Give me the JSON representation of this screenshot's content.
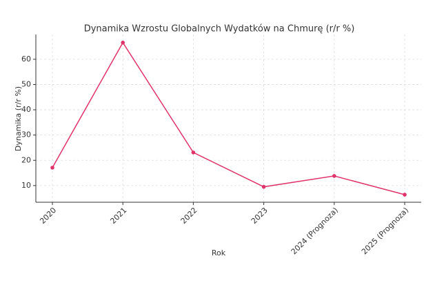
{
  "chart_data": {
    "type": "line",
    "title": "Dynamika Wzrostu Globalnych Wydatków na Chmurę (r/r %)",
    "x_label": "Rok",
    "y_label": "Dynamika (r/r %)",
    "categories": [
      "2020",
      "2021",
      "2022",
      "2023",
      "2024 (Prognoza)",
      "2025 (Prognoza)"
    ],
    "series": [
      {
        "color": "#e0336a",
        "values": [
          17.1,
          66.6,
          23.1,
          9.5,
          13.8,
          6.4
        ]
      }
    ],
    "ylim": [
      3.4,
      69.8
    ],
    "yticks": [
      10,
      20,
      30,
      40,
      50,
      60
    ],
    "grid": true
  }
}
